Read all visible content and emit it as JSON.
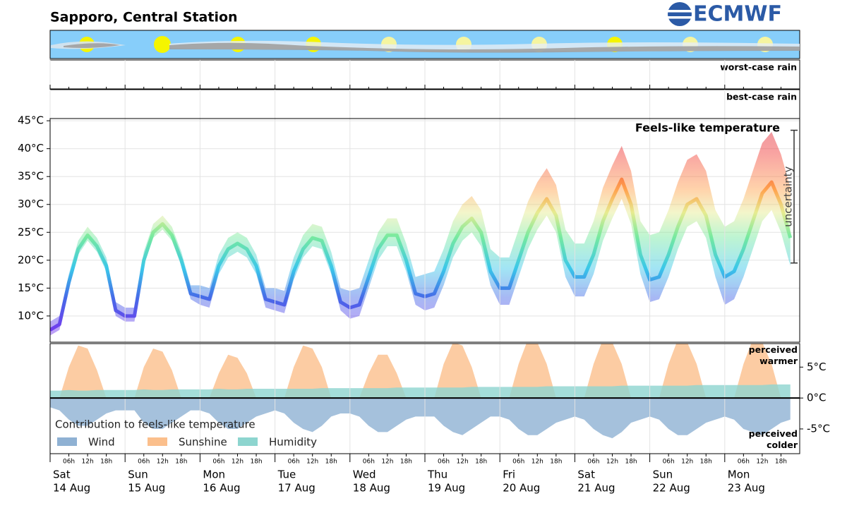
{
  "title": "Sapporo, Central Station",
  "logo": "ECMWF",
  "rain_labels": {
    "worst": "worst-case rain",
    "best": "best-case rain"
  },
  "x_axis": {
    "days": [
      {
        "weekday": "Sat",
        "date": "14 Aug"
      },
      {
        "weekday": "Sun",
        "date": "15 Aug"
      },
      {
        "weekday": "Mon",
        "date": "16 Aug"
      },
      {
        "weekday": "Tue",
        "date": "17 Aug"
      },
      {
        "weekday": "Wed",
        "date": "18 Aug"
      },
      {
        "weekday": "Thu",
        "date": "19 Aug"
      },
      {
        "weekday": "Fri",
        "date": "20 Aug"
      },
      {
        "weekday": "Sat",
        "date": "21 Aug"
      },
      {
        "weekday": "Sun",
        "date": "22 Aug"
      },
      {
        "weekday": "Mon",
        "date": "23 Aug"
      }
    ],
    "hour_labels": [
      "06h",
      "12h",
      "18h"
    ]
  },
  "chart_data": [
    {
      "type": "band",
      "title": "Feels-like temperature",
      "annotation": "uncertainty",
      "uncertainty_range": [
        19.5,
        43.3
      ],
      "grid": true,
      "ylim": [
        5.3,
        45.4
      ],
      "yticks": [
        {
          "value": 10,
          "label": "10°C"
        },
        {
          "value": 15,
          "label": "15°C"
        },
        {
          "value": 20,
          "label": "20°C"
        },
        {
          "value": 25,
          "label": "25°C"
        },
        {
          "value": 30,
          "label": "30°C"
        },
        {
          "value": 35,
          "label": "35°C"
        },
        {
          "value": 40,
          "label": "40°C"
        },
        {
          "value": 45,
          "label": "45°C"
        }
      ],
      "median": [
        7.5,
        8.5,
        16,
        22,
        24.5,
        22.5,
        19,
        11,
        10,
        10,
        20,
        25,
        26.5,
        24.5,
        20,
        14,
        13.5,
        13,
        19,
        22,
        23,
        22,
        19,
        13,
        12.5,
        12,
        18,
        22,
        24,
        23.5,
        19,
        12.5,
        11.5,
        12,
        17,
        22,
        24.5,
        24.5,
        20,
        14,
        13.5,
        14,
        18,
        23,
        26,
        27.5,
        25,
        18,
        15,
        15,
        20,
        25,
        28.5,
        31,
        28,
        20,
        17,
        17,
        21,
        27,
        31,
        34.5,
        30,
        21,
        16.5,
        17,
        21,
        26,
        30,
        31,
        28,
        21,
        17,
        18,
        22,
        27,
        32,
        34,
        30,
        24
      ],
      "low": [
        6.5,
        7.5,
        15,
        21,
        23.5,
        21.5,
        18,
        10,
        9,
        9,
        19,
        24,
        25.5,
        23.5,
        19,
        13,
        12,
        11.5,
        17.5,
        20.5,
        21.5,
        20.5,
        17.5,
        11.5,
        11,
        10.5,
        16.5,
        20.5,
        22.5,
        22,
        17.5,
        11,
        9.5,
        10,
        15,
        20,
        22.5,
        22.5,
        18,
        12,
        11,
        11.5,
        15.5,
        20.5,
        23.5,
        25,
        22.5,
        15.5,
        12,
        12,
        17,
        22,
        25.5,
        28,
        25,
        17,
        13.5,
        13.5,
        17.5,
        23.5,
        27.5,
        31,
        26.5,
        17.5,
        12.5,
        13,
        17,
        22,
        26,
        27,
        24,
        17,
        12,
        13,
        17,
        22,
        27,
        29,
        25,
        19
      ],
      "high": [
        9,
        10,
        17.5,
        23.5,
        26,
        24,
        20.5,
        12.5,
        11.5,
        11.5,
        21.5,
        26.5,
        28,
        26,
        21.5,
        15.5,
        15.5,
        15,
        21,
        24,
        25,
        24,
        21,
        15,
        15,
        14.5,
        20.5,
        24.5,
        26.5,
        26,
        21.5,
        15,
        14.5,
        15,
        20,
        25,
        27.5,
        27.5,
        23,
        17,
        17.5,
        18,
        22,
        27,
        30,
        31.5,
        29,
        22,
        20.5,
        20.5,
        25.5,
        30.5,
        34,
        36.5,
        33.5,
        25.5,
        23,
        23,
        27,
        33,
        37,
        40.5,
        36,
        27,
        24.5,
        25,
        29,
        34,
        38,
        39,
        36,
        29,
        26,
        27,
        31,
        36,
        41,
        43,
        39,
        33
      ]
    },
    {
      "type": "area",
      "legend_title": "Contribution to feels-like temperature",
      "legend": "lower left",
      "warmer_label": "perceived warmer",
      "colder_label": "perceived colder",
      "ylim": [
        -9,
        8.8
      ],
      "yticks": [
        {
          "value": 5,
          "label": "5°C"
        },
        {
          "value": 0,
          "label": "0°C"
        },
        {
          "value": -5,
          "label": "-5°C"
        }
      ],
      "series": [
        {
          "name": "Wind",
          "color": "#8fb1d3",
          "values": [
            -1.5,
            -2,
            -3.5,
            -4.5,
            -4.5,
            -3.5,
            -2.5,
            -2,
            -2,
            -2,
            -4,
            -5,
            -5,
            -4,
            -3,
            -2,
            -2,
            -2.5,
            -4,
            -5,
            -5,
            -4,
            -3,
            -2.5,
            -2,
            -2.5,
            -4,
            -5,
            -5.5,
            -4.5,
            -3,
            -2.5,
            -2.5,
            -3,
            -4.5,
            -5.5,
            -5.5,
            -4.5,
            -3.5,
            -3,
            -3,
            -3,
            -4.5,
            -5.5,
            -6,
            -5,
            -4,
            -3,
            -3,
            -3.5,
            -5,
            -6,
            -6,
            -5,
            -4,
            -3.5,
            -3,
            -3.5,
            -5,
            -6,
            -6.5,
            -5.5,
            -4,
            -3.5,
            -3,
            -3.5,
            -5,
            -6,
            -6,
            -5,
            -4,
            -3.5,
            -3,
            -3.5,
            -5,
            -5.5,
            -6,
            -5,
            -4,
            -3.5
          ]
        },
        {
          "name": "Sunshine",
          "color": "#fbbf8c",
          "values": [
            0,
            0,
            5,
            8.5,
            8,
            4.5,
            0,
            0,
            0,
            0,
            5,
            8,
            7.5,
            4.5,
            0,
            0,
            0,
            0,
            4,
            7,
            6.5,
            4,
            0,
            0,
            0,
            0,
            5,
            8.5,
            8,
            5,
            0,
            0,
            0,
            0,
            4,
            7,
            7,
            4,
            0,
            0,
            0,
            0,
            5.5,
            9,
            8.5,
            5,
            0,
            0,
            0,
            0,
            5.5,
            9.5,
            9,
            5.5,
            0,
            0,
            0,
            0,
            5.5,
            9.5,
            9,
            5.5,
            0,
            0,
            0,
            0,
            5.5,
            9.5,
            9,
            5.5,
            0,
            0,
            0,
            0,
            5.5,
            9.5,
            9,
            5.5,
            0,
            0
          ]
        },
        {
          "name": "Humidity",
          "color": "#8dd5cf",
          "values": [
            1.2,
            1.2,
            1.3,
            1.2,
            1.2,
            1.3,
            1.3,
            1.3,
            1.3,
            1.3,
            1.4,
            1.3,
            1.3,
            1.4,
            1.4,
            1.4,
            1.4,
            1.4,
            1.5,
            1.4,
            1.4,
            1.5,
            1.5,
            1.5,
            1.5,
            1.5,
            1.5,
            1.5,
            1.5,
            1.6,
            1.6,
            1.6,
            1.6,
            1.6,
            1.6,
            1.6,
            1.6,
            1.7,
            1.7,
            1.7,
            1.7,
            1.7,
            1.7,
            1.7,
            1.7,
            1.8,
            1.8,
            1.8,
            1.8,
            1.8,
            1.8,
            1.8,
            1.8,
            1.9,
            1.9,
            1.9,
            1.9,
            1.9,
            1.9,
            1.9,
            1.9,
            2,
            2,
            2,
            2,
            2,
            2,
            2,
            2,
            2.1,
            2.1,
            2.1,
            2.1,
            2.1,
            2.1,
            2.1,
            2.1,
            2.2,
            2.2,
            2.2
          ]
        }
      ]
    }
  ]
}
